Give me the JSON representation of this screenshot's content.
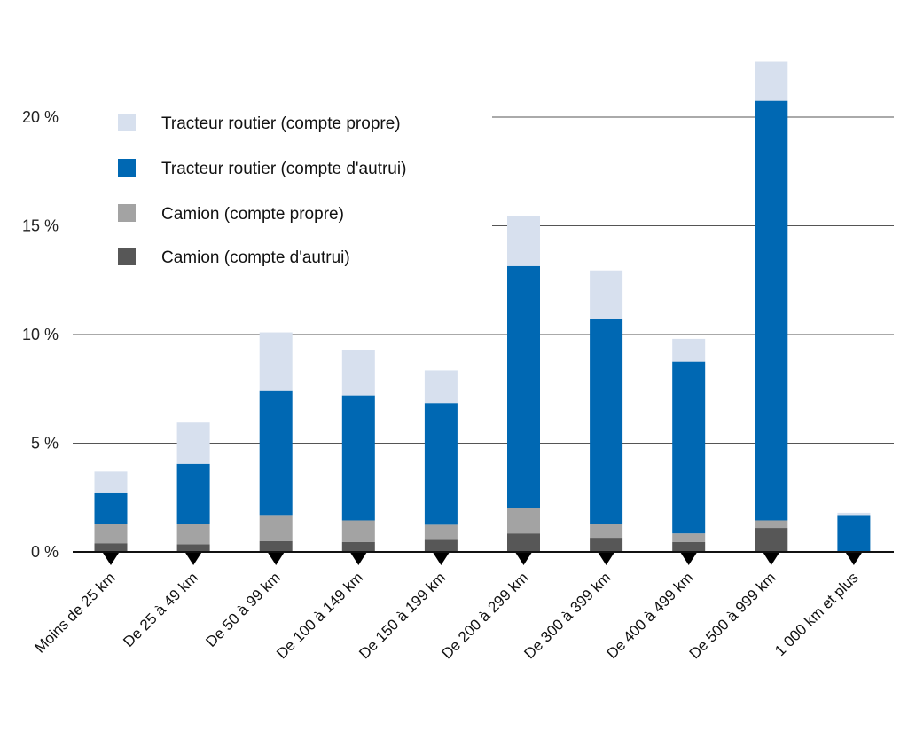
{
  "chart_data": {
    "type": "bar",
    "stacked": true,
    "title": "",
    "xlabel": "",
    "ylabel": "",
    "ylim": [
      0,
      22.6
    ],
    "yticks": [
      "0 %",
      "5 %",
      "10 %",
      "15 %",
      "20 %"
    ],
    "grid": true,
    "legend_position": "top-left",
    "categories": [
      "Moins de 25 km",
      "De 25 à 49 km",
      "De 50 à 99 km",
      "De 100 à 149 km",
      "De 150 à 199 km",
      "De 200 à 299 km",
      "De 300 à 399 km",
      "De 400 à 499 km",
      "De 500 à 999 km",
      "1 000 km et plus"
    ],
    "series": [
      {
        "name": "Camion (compte d'autrui)",
        "color": "#575757",
        "values": [
          0.4,
          0.35,
          0.5,
          0.45,
          0.55,
          0.85,
          0.65,
          0.45,
          1.1,
          0.0
        ]
      },
      {
        "name": "Camion (compte propre)",
        "color": "#a3a3a3",
        "values": [
          0.9,
          0.95,
          1.2,
          1.0,
          0.7,
          1.15,
          0.65,
          0.4,
          0.35,
          0.0
        ]
      },
      {
        "name": "Tracteur routier (compte d'autrui)",
        "color": "#0068b3",
        "values": [
          1.4,
          2.75,
          5.7,
          5.75,
          5.6,
          11.15,
          9.4,
          7.9,
          19.3,
          1.7
        ]
      },
      {
        "name": "Tracteur routier (compte propre)",
        "color": "#d7e0ee",
        "values": [
          1.0,
          1.9,
          2.7,
          2.1,
          1.5,
          2.3,
          2.25,
          1.05,
          1.8,
          0.1
        ]
      }
    ],
    "legend_order": [
      3,
      2,
      1,
      0
    ]
  }
}
